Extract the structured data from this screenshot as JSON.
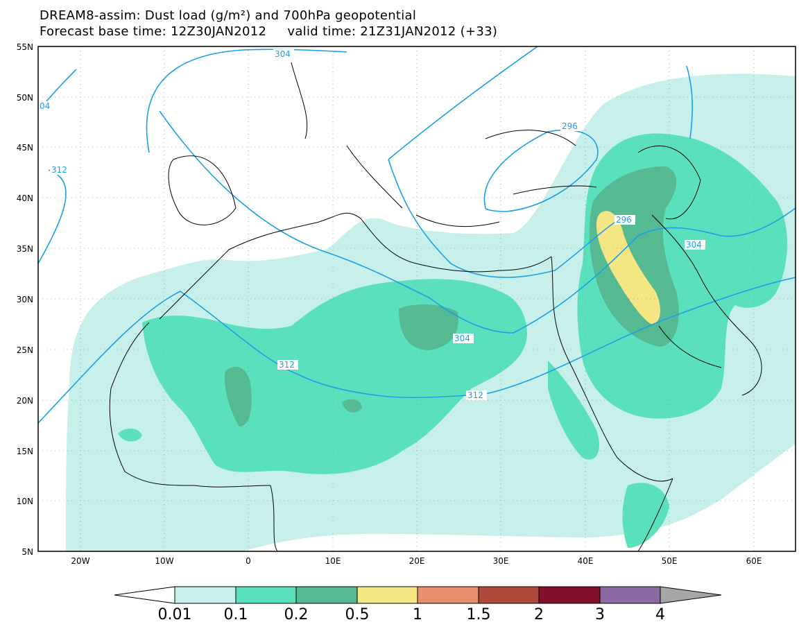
{
  "title_line1": "DREAM8-assim: Dust load (g/m²) and 700hPa geopotential",
  "title_line2": "Forecast base time: 12Z30JAN2012     valid time: 21Z31JAN2012 (+33)",
  "lat_labels": [
    "55N",
    "50N",
    "45N",
    "40N",
    "35N",
    "30N",
    "25N",
    "20N",
    "15N",
    "10N",
    "5N"
  ],
  "lon_labels": [
    "20W",
    "10W",
    "0",
    "10E",
    "20E",
    "30E",
    "40E",
    "50E",
    "60E"
  ],
  "contour_labels": [
    "304",
    "04",
    "312",
    "296",
    "304",
    "304",
    "312",
    "312",
    "296"
  ],
  "colorbar": {
    "labels": [
      "0.01",
      "0.1",
      "0.2",
      "0.5",
      "1",
      "1.5",
      "2",
      "3",
      "4"
    ],
    "colors": [
      "#ffffff",
      "#c7f0ea",
      "#5be0bd",
      "#55b992",
      "#f4e783",
      "#e78f6a",
      "#b04a3c",
      "#820f2b",
      "#8a6aa0",
      "#a6a6a6"
    ]
  },
  "colors": {
    "dust_low": "#c7f0ea",
    "dust_mid": "#5be0bd",
    "dust_high": "#55b992",
    "dust_peak": "#f4e783",
    "geopotential": "#1a9fe8"
  }
}
